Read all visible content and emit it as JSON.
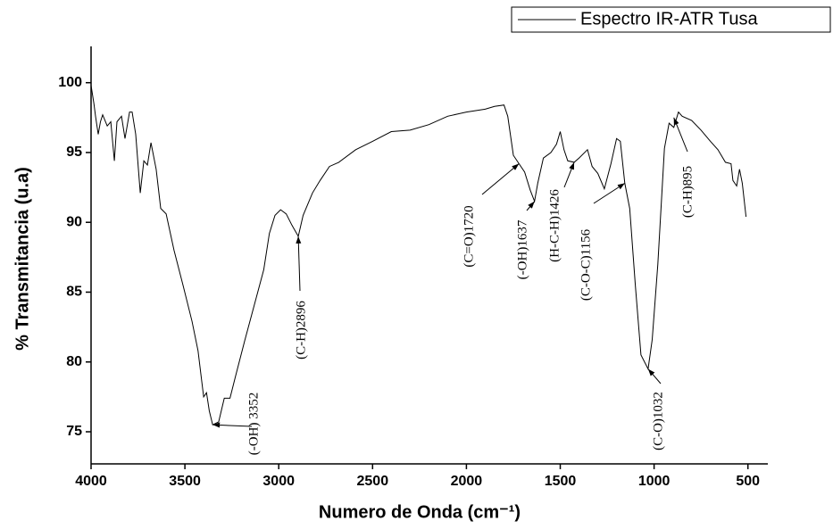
{
  "chart_data": {
    "type": "line",
    "xlabel": "Numero de Onda (cm⁻¹)",
    "ylabel": "% Transmitancia (u.a)",
    "xlim": [
      4000,
      394
    ],
    "ylim": [
      72.7,
      102.6
    ],
    "xticks": [
      4000,
      3500,
      3000,
      2500,
      2000,
      1500,
      1000,
      500
    ],
    "yticks": [
      75,
      80,
      85,
      90,
      95,
      100
    ],
    "legend": "top-right",
    "x": [
      4000,
      3985,
      3976,
      3962,
      3950,
      3938,
      3914,
      3895,
      3876,
      3862,
      3838,
      3819,
      3795,
      3781,
      3762,
      3738,
      3719,
      3700,
      3681,
      3653,
      3629,
      3600,
      3558,
      3510,
      3462,
      3430,
      3400,
      3385,
      3370,
      3352,
      3320,
      3290,
      3260,
      3230,
      3180,
      3130,
      3080,
      3050,
      3020,
      2990,
      2960,
      2930,
      2896,
      2870,
      2820,
      2780,
      2730,
      2680,
      2590,
      2500,
      2400,
      2300,
      2200,
      2100,
      2000,
      1900,
      1850,
      1800,
      1780,
      1750,
      1720,
      1690,
      1660,
      1637,
      1620,
      1590,
      1550,
      1520,
      1500,
      1480,
      1460,
      1426,
      1400,
      1355,
      1330,
      1300,
      1265,
      1230,
      1200,
      1180,
      1156,
      1130,
      1100,
      1070,
      1032,
      1010,
      980,
      945,
      920,
      895,
      870,
      850,
      800,
      750,
      700,
      660,
      620,
      590,
      580,
      560,
      545,
      530,
      510
    ],
    "series": [
      {
        "name": "Espectro IR-ATR Tusa",
        "color": "#000000",
        "values": [
          99.8,
          98.5,
          97.6,
          96.3,
          97.2,
          97.7,
          96.9,
          97.2,
          94.4,
          97.2,
          97.6,
          96.0,
          97.9,
          97.9,
          96.3,
          92.1,
          94.4,
          94.1,
          95.7,
          93.8,
          91.0,
          90.6,
          88.0,
          85.5,
          82.9,
          80.8,
          77.5,
          77.8,
          76.5,
          75.5,
          75.7,
          77.4,
          77.4,
          79.0,
          81.6,
          84.1,
          86.6,
          89.2,
          90.5,
          90.9,
          90.6,
          89.8,
          89.0,
          90.5,
          92.1,
          93.0,
          94.0,
          94.3,
          95.2,
          95.8,
          96.5,
          96.6,
          97.0,
          97.6,
          97.9,
          98.1,
          98.3,
          98.4,
          97.6,
          94.8,
          94.2,
          93.6,
          92.3,
          91.5,
          92.8,
          94.6,
          95.0,
          95.6,
          96.5,
          95.2,
          94.4,
          94.3,
          94.6,
          95.2,
          94.0,
          93.5,
          92.4,
          94.2,
          96.0,
          95.8,
          92.8,
          91.0,
          85.5,
          80.5,
          79.5,
          81.6,
          87.0,
          95.3,
          97.1,
          96.8,
          97.9,
          97.6,
          97.3,
          96.6,
          95.8,
          95.2,
          94.3,
          94.2,
          93.0,
          92.6,
          93.8,
          92.8,
          90.4
        ]
      }
    ],
    "annotations": [
      {
        "text": "(-OH) 3352",
        "x": 3352,
        "y": 75.5
      },
      {
        "text": "(C-H)2896",
        "x": 2896,
        "y": 89.0
      },
      {
        "text": "(C=O)1720",
        "x": 1720,
        "y": 94.2
      },
      {
        "text": "(-OH)1637",
        "x": 1637,
        "y": 91.5
      },
      {
        "text": "(H-C-H)1426",
        "x": 1426,
        "y": 94.3
      },
      {
        "text": "(C-O-C)1156",
        "x": 1156,
        "y": 92.8
      },
      {
        "text": "(C-O)1032",
        "x": 1032,
        "y": 79.5
      },
      {
        "text": "(C-H)895",
        "x": 895,
        "y": 97.5
      }
    ]
  }
}
